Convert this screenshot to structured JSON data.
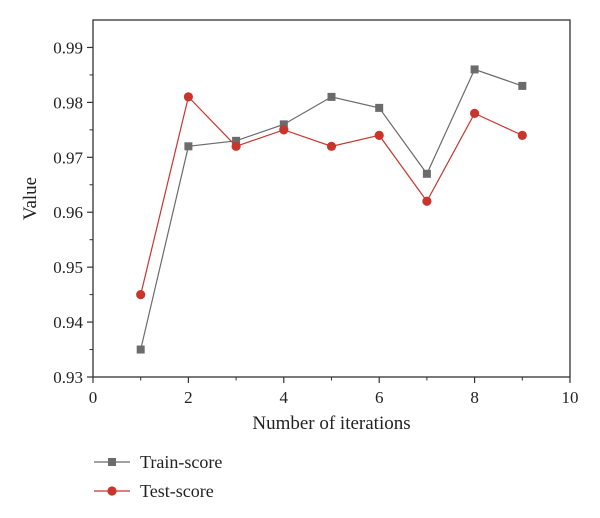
{
  "chart_data": {
    "type": "line",
    "xlabel": "Number of iterations",
    "ylabel": "Value",
    "xlim": [
      0,
      10
    ],
    "ylim": [
      0.93,
      0.995
    ],
    "xticks": [
      0,
      2,
      4,
      6,
      8,
      10
    ],
    "xtick_labels": [
      "0",
      "2",
      "4",
      "6",
      "8",
      "10"
    ],
    "yticks": [
      0.93,
      0.94,
      0.95,
      0.96,
      0.97,
      0.98,
      0.99
    ],
    "ytick_labels": [
      "0.93",
      "0.94",
      "0.95",
      "0.96",
      "0.97",
      "0.98",
      "0.99"
    ],
    "x": [
      1,
      2,
      3,
      4,
      5,
      6,
      7,
      8,
      9
    ],
    "series": [
      {
        "name": "Train-score",
        "marker": "square",
        "color": "#6b6b6b",
        "values": [
          0.935,
          0.972,
          0.973,
          0.976,
          0.981,
          0.979,
          0.967,
          0.986,
          0.983
        ]
      },
      {
        "name": "Test-score",
        "marker": "circle",
        "color": "#c8352c",
        "values": [
          0.945,
          0.981,
          0.972,
          0.975,
          0.972,
          0.974,
          0.962,
          0.978,
          0.974
        ]
      }
    ],
    "legend_position": "bottom-left",
    "grid": false
  }
}
